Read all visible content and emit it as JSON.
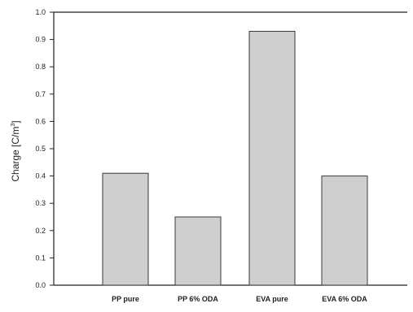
{
  "chart_data": {
    "type": "bar",
    "title": "",
    "xlabel": "",
    "ylabel": "Charge [C/m",
    "ylabel_sup": "3",
    "ylabel_suffix": "]",
    "categories": [
      "PP pure",
      "PP 6% ODA",
      "EVA pure",
      "EVA 6% ODA"
    ],
    "values": [
      0.41,
      0.25,
      0.93,
      0.4
    ],
    "ylim": [
      0.0,
      1.0
    ],
    "yticks": [
      "0.0",
      "0.1",
      "0.2",
      "0.3",
      "0.4",
      "0.5",
      "0.6",
      "0.7",
      "0.8",
      "0.9",
      "1.0"
    ],
    "grid": false,
    "legend": "none",
    "colors": {
      "bar_fill": "#cfcfcf",
      "bar_stroke": "#3a3a3a",
      "axis": "#222222"
    }
  }
}
